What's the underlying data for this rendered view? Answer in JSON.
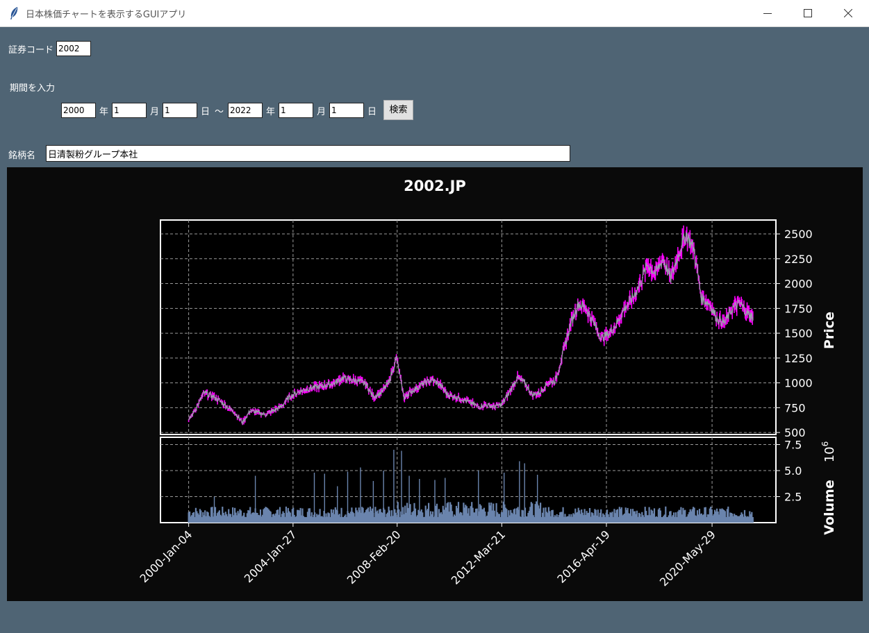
{
  "window": {
    "title": "日本株価チャートを表示するGUIアプリ"
  },
  "form": {
    "code_label": "証券コード",
    "code_value": "2002",
    "period_label": "期間を入力",
    "start_year": "2000",
    "start_month": "1",
    "start_day": "1",
    "end_year": "2022",
    "end_month": "1",
    "end_day": "1",
    "year_suffix": "年",
    "month_suffix": "月",
    "day_suffix": "日",
    "tilde": "〜",
    "search_label": "検索",
    "name_label": "銘柄名",
    "name_value": "日清製粉グループ本社"
  },
  "icons": {
    "app": "feather-icon",
    "minimize": "minimize-icon",
    "maximize": "maximize-icon",
    "close": "close-icon"
  },
  "chart_data": {
    "type": "line",
    "title": "2002.JP",
    "price_ylabel": "Price",
    "volume_ylabel": "Volume",
    "volume_exponent": "10",
    "volume_exponent_power": "6",
    "x_tick_labels": [
      "2000-Jan-04",
      "2004-Jan-27",
      "2008-Feb-20",
      "2012-Mar-21",
      "2016-Apr-19",
      "2020-May-29"
    ],
    "x_ticks_year": [
      2000.0,
      2004.07,
      2008.13,
      2012.21,
      2016.29,
      2020.41
    ],
    "price_yticks": [
      500,
      750,
      1000,
      1250,
      1500,
      1750,
      2000,
      2250,
      2500
    ],
    "price_ylim": [
      480,
      2640
    ],
    "volume_yticks": [
      "2.5",
      "5.0",
      "7.5"
    ],
    "volume_ylim": [
      0,
      8.2
    ],
    "xlim": [
      1998.9,
      2022.9
    ],
    "grid": true,
    "colors": {
      "price_line": "#9aa2aa",
      "price_wick": "#ff00ff",
      "volume": "#6a84ad",
      "background": "#000000",
      "text": "#ffffff"
    },
    "price_series": {
      "name": "",
      "x": [
        2000.0,
        2000.3,
        2000.6,
        2000.9,
        2001.2,
        2001.5,
        2001.8,
        2002.1,
        2002.4,
        2002.7,
        2003.0,
        2003.3,
        2003.6,
        2003.9,
        2004.2,
        2004.5,
        2004.8,
        2005.1,
        2005.4,
        2005.7,
        2006.0,
        2006.3,
        2006.6,
        2006.9,
        2007.2,
        2007.5,
        2007.8,
        2008.1,
        2008.4,
        2008.6,
        2008.9,
        2009.2,
        2009.5,
        2009.8,
        2010.1,
        2010.4,
        2010.7,
        2011.0,
        2011.3,
        2011.6,
        2011.9,
        2012.2,
        2012.5,
        2012.8,
        2013.1,
        2013.4,
        2013.7,
        2014.0,
        2014.3,
        2014.6,
        2014.9,
        2015.2,
        2015.5,
        2015.8,
        2016.1,
        2016.4,
        2016.7,
        2017.0,
        2017.3,
        2017.6,
        2017.9,
        2018.2,
        2018.5,
        2018.8,
        2019.1,
        2019.4,
        2019.7,
        2020.0,
        2020.3,
        2020.6,
        2020.9,
        2021.2,
        2021.5,
        2021.8,
        2022.0
      ],
      "y": [
        620,
        750,
        900,
        870,
        820,
        760,
        700,
        600,
        720,
        700,
        680,
        720,
        760,
        850,
        900,
        930,
        950,
        960,
        980,
        1000,
        1050,
        1030,
        1020,
        990,
        860,
        900,
        1000,
        1250,
        850,
        900,
        950,
        1000,
        1030,
        980,
        880,
        860,
        830,
        800,
        760,
        780,
        760,
        780,
        900,
        1050,
        1000,
        880,
        900,
        1000,
        1020,
        1300,
        1600,
        1800,
        1750,
        1600,
        1450,
        1500,
        1600,
        1750,
        1850,
        2000,
        2200,
        2100,
        2250,
        2050,
        2300,
        2500,
        2350,
        1850,
        1800,
        1650,
        1600,
        1750,
        1800,
        1700,
        1660
      ]
    },
    "volume_series": {
      "name": "",
      "units": "10^6",
      "spikes": [
        [
          2004.9,
          4.8
        ],
        [
          2005.3,
          4.7
        ],
        [
          2006.2,
          4.9
        ],
        [
          2006.7,
          5.3
        ],
        [
          2007.6,
          5.0
        ],
        [
          2008.0,
          7.0
        ],
        [
          2008.3,
          6.9
        ],
        [
          2008.6,
          4.5
        ],
        [
          2009.0,
          4.2
        ],
        [
          2010.0,
          4.3
        ],
        [
          2011.3,
          5.0
        ],
        [
          2012.3,
          4.8
        ],
        [
          2012.9,
          5.9
        ],
        [
          2013.1,
          5.7
        ],
        [
          2013.6,
          4.6
        ],
        [
          2001.0,
          2.5
        ],
        [
          2002.6,
          4.5
        ],
        [
          2005.8,
          3.5
        ],
        [
          2007.2,
          4.0
        ],
        [
          2009.6,
          4.1
        ]
      ]
    }
  }
}
